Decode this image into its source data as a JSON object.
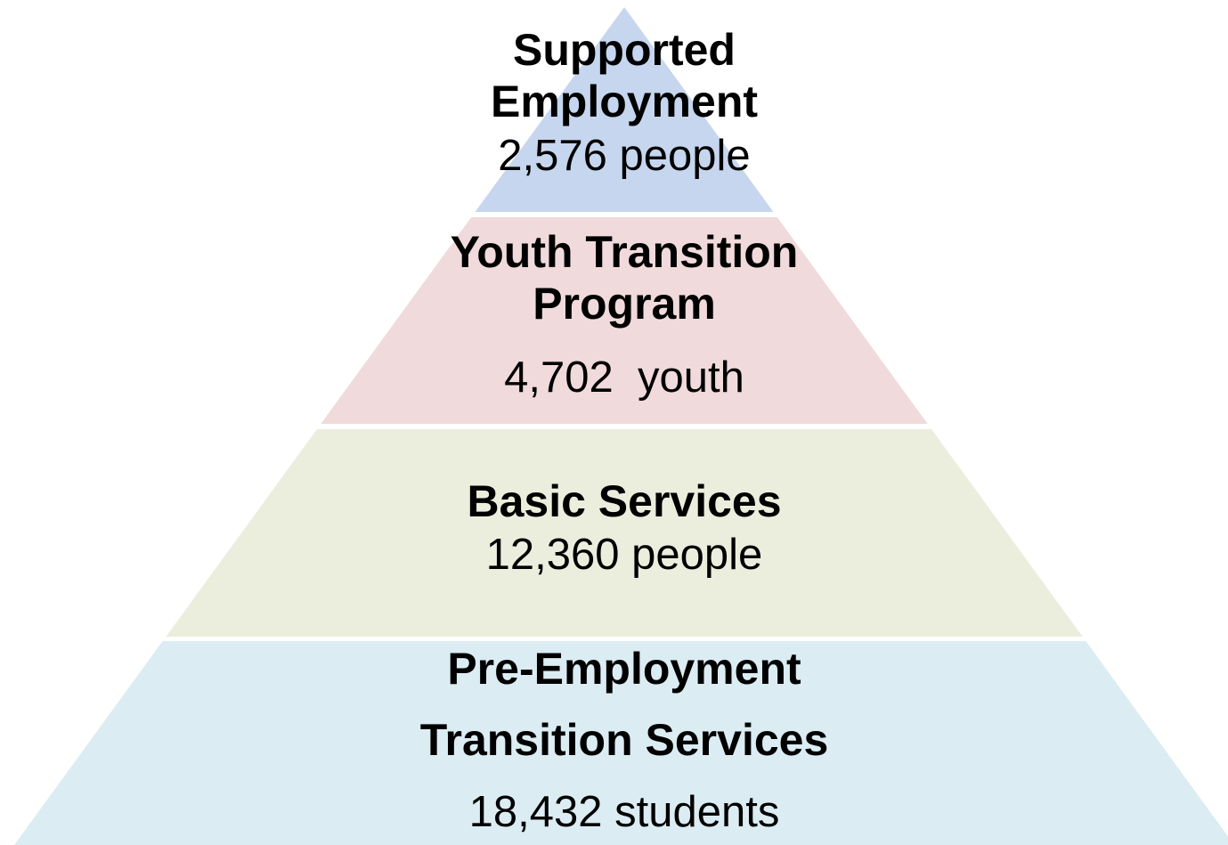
{
  "levels": [
    {
      "title": [
        "Supported",
        "Employment"
      ],
      "count": "2,576 people",
      "color": "#c6d6ef"
    },
    {
      "title": [
        "Youth Transition",
        "Program"
      ],
      "count": "4,702  youth",
      "color": "#f0dadb"
    },
    {
      "title": [
        "Basic Services"
      ],
      "count": "12,360 people",
      "color": "#ebeedd"
    },
    {
      "title": [
        "Pre-Employment",
        "Transition Services"
      ],
      "count": "18,432 students",
      "color": "#dbecf3"
    }
  ]
}
